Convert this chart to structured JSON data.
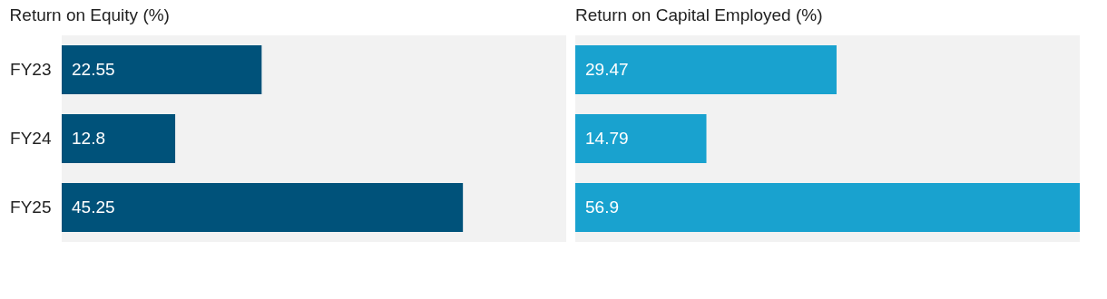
{
  "chart_data": [
    {
      "type": "bar",
      "orientation": "horizontal",
      "title": "Return on Equity (%)",
      "categories": [
        "FY23",
        "FY24",
        "FY25"
      ],
      "values": [
        22.55,
        12.8,
        45.25
      ],
      "color": "#00527a",
      "xlim": [
        0,
        56.9
      ],
      "data_labels": true,
      "tick_labels": "y"
    },
    {
      "type": "bar",
      "orientation": "horizontal",
      "title": "Return on Capital Employed (%)",
      "categories": [
        null,
        null,
        null
      ],
      "values": [
        29.47,
        14.79,
        56.9
      ],
      "color": "#19a2cf",
      "xlim": [
        0,
        56.9
      ],
      "data_labels": true,
      "tick_labels": false
    }
  ]
}
